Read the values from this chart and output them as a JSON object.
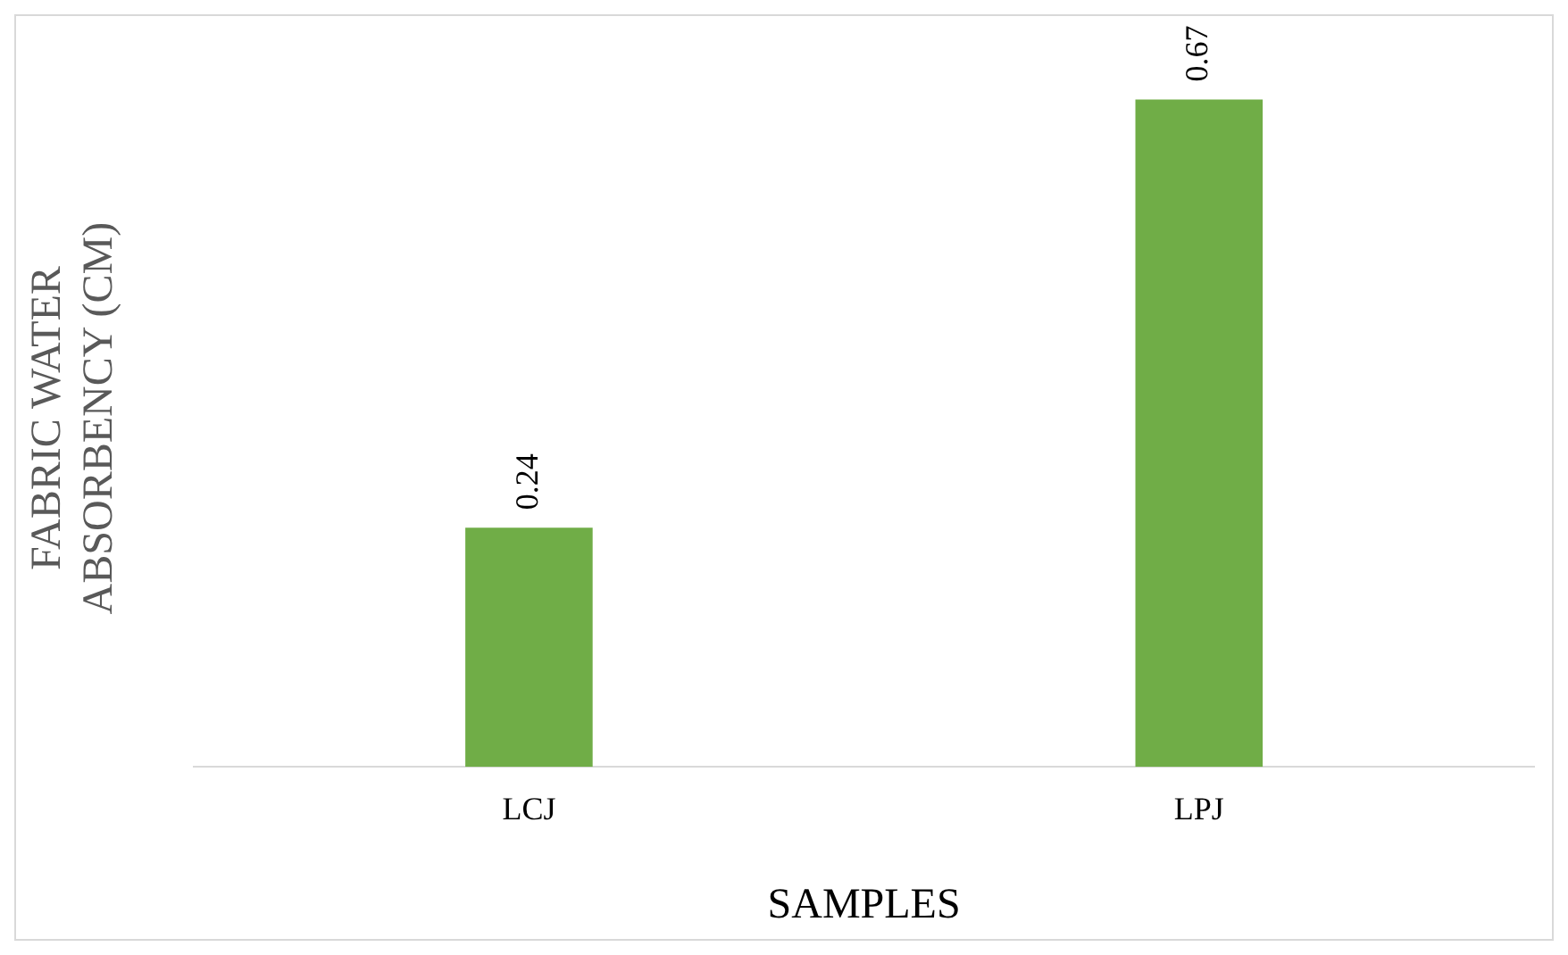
{
  "chart_data": {
    "type": "bar",
    "xlabel": "SAMPLES",
    "ylabel": "FABRIC WATER ABSORBENCY (CM)",
    "categories": [
      "LCJ",
      "LPJ"
    ],
    "values": [
      0.24,
      0.67
    ],
    "color": "#70ad47",
    "data_labels": true,
    "grid": false,
    "legend": false
  }
}
